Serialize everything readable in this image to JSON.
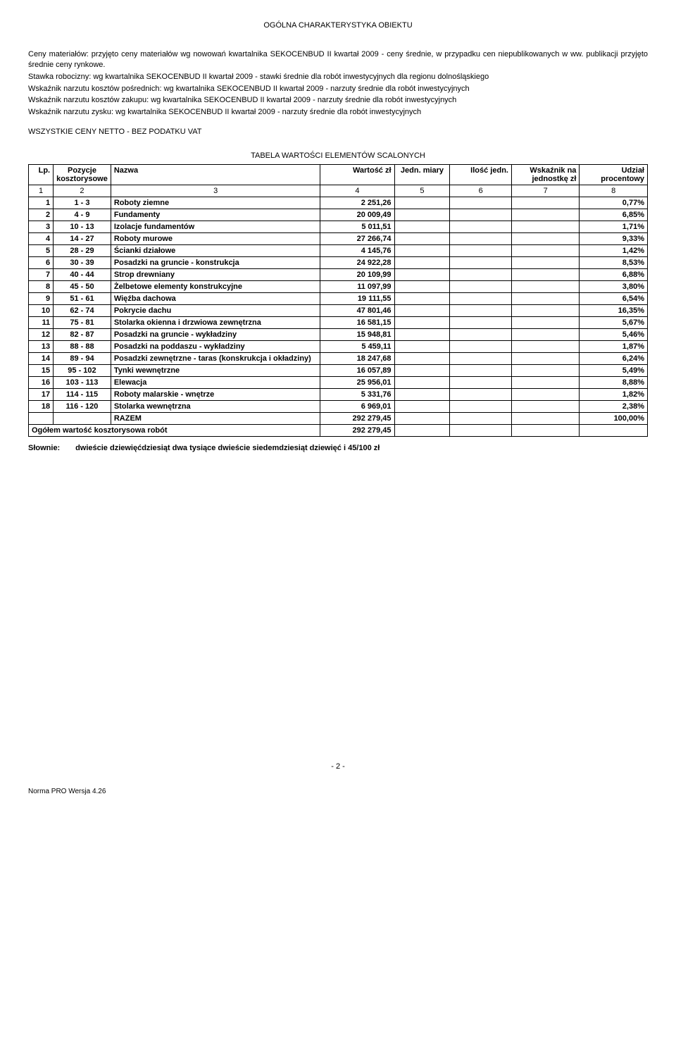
{
  "page_title": "OGÓLNA CHARAKTERYSTYKA OBIEKTU",
  "intro": {
    "p1": "Ceny materiałów: przyjęto ceny materiałów wg nowowań kwartalnika SEKOCENBUD II kwartał 2009 - ceny średnie, w przypadku cen niepublikowanych w ww. publikacji przyjęto średnie ceny rynkowe.",
    "p2": "Stawka robocizny: wg kwartalnika SEKOCENBUD II kwartał 2009 - stawki średnie dla robót inwestycyjnych dla regionu dolnośląskiego",
    "p3": "Wskaźnik narzutu kosztów pośrednich: wg kwartalnika SEKOCENBUD II kwartał 2009 - narzuty średnie dla robót inwestycyjnych",
    "p4": "Wskaźnik narzutu kosztów zakupu: wg kwartalnika SEKOCENBUD II kwartał 2009 - narzuty średnie dla robót inwestycyjnych",
    "p5": "Wskaźnik narzutu zysku: wg kwartalnika SEKOCENBUD II kwartał 2009 - narzuty średnie dla robót inwestycyjnych"
  },
  "netto_line": "WSZYSTKIE CENY NETTO - BEZ PODATKU VAT",
  "table_title": "TABELA WARTOŚCI ELEMENTÓW SCALONYCH",
  "columns": {
    "lp": "Lp.",
    "poz": "Pozycje kosztorysowe",
    "nazwa": "Nazwa",
    "wart": "Wartość zł",
    "jedn": "Jedn. miary",
    "ilosc": "Ilość jedn.",
    "wsk": "Wskaźnik na jednostkę zł",
    "udz": "Udział procentowy"
  },
  "numrow": {
    "c1": "1",
    "c2": "2",
    "c3": "3",
    "c4": "4",
    "c5": "5",
    "c6": "6",
    "c7": "7",
    "c8": "8"
  },
  "rows": [
    {
      "lp": "1",
      "poz": "1 - 3",
      "nazwa": "Roboty ziemne",
      "wart": "2 251,26",
      "jedn": "",
      "ilosc": "",
      "wsk": "",
      "udz": "0,77%"
    },
    {
      "lp": "2",
      "poz": "4 - 9",
      "nazwa": "Fundamenty",
      "wart": "20 009,49",
      "jedn": "",
      "ilosc": "",
      "wsk": "",
      "udz": "6,85%"
    },
    {
      "lp": "3",
      "poz": "10 - 13",
      "nazwa": "Izolacje fundamentów",
      "wart": "5 011,51",
      "jedn": "",
      "ilosc": "",
      "wsk": "",
      "udz": "1,71%"
    },
    {
      "lp": "4",
      "poz": "14 - 27",
      "nazwa": "Roboty murowe",
      "wart": "27 266,74",
      "jedn": "",
      "ilosc": "",
      "wsk": "",
      "udz": "9,33%"
    },
    {
      "lp": "5",
      "poz": "28 - 29",
      "nazwa": "Ścianki działowe",
      "wart": "4 145,76",
      "jedn": "",
      "ilosc": "",
      "wsk": "",
      "udz": "1,42%"
    },
    {
      "lp": "6",
      "poz": "30 - 39",
      "nazwa": "Posadzki na gruncie - konstrukcja",
      "wart": "24 922,28",
      "jedn": "",
      "ilosc": "",
      "wsk": "",
      "udz": "8,53%"
    },
    {
      "lp": "7",
      "poz": "40 - 44",
      "nazwa": "Strop drewniany",
      "wart": "20 109,99",
      "jedn": "",
      "ilosc": "",
      "wsk": "",
      "udz": "6,88%"
    },
    {
      "lp": "8",
      "poz": "45 - 50",
      "nazwa": "Żelbetowe elementy konstrukcyjne",
      "wart": "11 097,99",
      "jedn": "",
      "ilosc": "",
      "wsk": "",
      "udz": "3,80%"
    },
    {
      "lp": "9",
      "poz": "51 - 61",
      "nazwa": "Więźba dachowa",
      "wart": "19 111,55",
      "jedn": "",
      "ilosc": "",
      "wsk": "",
      "udz": "6,54%"
    },
    {
      "lp": "10",
      "poz": "62 - 74",
      "nazwa": "Pokrycie dachu",
      "wart": "47 801,46",
      "jedn": "",
      "ilosc": "",
      "wsk": "",
      "udz": "16,35%"
    },
    {
      "lp": "11",
      "poz": "75 - 81",
      "nazwa": "Stolarka okienna i drzwiowa zewnętrzna",
      "wart": "16 581,15",
      "jedn": "",
      "ilosc": "",
      "wsk": "",
      "udz": "5,67%"
    },
    {
      "lp": "12",
      "poz": "82 - 87",
      "nazwa": "Posadzki na gruncie - wykładziny",
      "wart": "15 948,81",
      "jedn": "",
      "ilosc": "",
      "wsk": "",
      "udz": "5,46%"
    },
    {
      "lp": "13",
      "poz": "88 - 88",
      "nazwa": "Posadzki na poddaszu - wykładziny",
      "wart": "5 459,11",
      "jedn": "",
      "ilosc": "",
      "wsk": "",
      "udz": "1,87%"
    },
    {
      "lp": "14",
      "poz": "89 - 94",
      "nazwa": "Posadzki zewnętrzne - taras (konskrukcja i okładziny)",
      "wart": "18 247,68",
      "jedn": "",
      "ilosc": "",
      "wsk": "",
      "udz": "6,24%"
    },
    {
      "lp": "15",
      "poz": "95 - 102",
      "nazwa": "Tynki wewnętrzne",
      "wart": "16 057,89",
      "jedn": "",
      "ilosc": "",
      "wsk": "",
      "udz": "5,49%"
    },
    {
      "lp": "16",
      "poz": "103 - 113",
      "nazwa": "Elewacja",
      "wart": "25 956,01",
      "jedn": "",
      "ilosc": "",
      "wsk": "",
      "udz": "8,88%"
    },
    {
      "lp": "17",
      "poz": "114 - 115",
      "nazwa": "Roboty malarskie - wnętrze",
      "wart": "5 331,76",
      "jedn": "",
      "ilosc": "",
      "wsk": "",
      "udz": "1,82%"
    },
    {
      "lp": "18",
      "poz": "116 - 120",
      "nazwa": "Stolarka wewnętrzna",
      "wart": "6 969,01",
      "jedn": "",
      "ilosc": "",
      "wsk": "",
      "udz": "2,38%"
    }
  ],
  "razem": {
    "label": "RAZEM",
    "wart": "292 279,45",
    "udz": "100,00%"
  },
  "ogolem": {
    "label": "Ogółem wartość kosztorysowa robót",
    "wart": "292 279,45"
  },
  "slownie": {
    "label": "Słownie:",
    "text": "dwieście dziewięćdziesiąt dwa tysiące dwieście siedemdziesiąt dziewięć i 45/100 zł"
  },
  "page_num": "- 2 -",
  "norma": "Norma PRO Wersja 4.26"
}
